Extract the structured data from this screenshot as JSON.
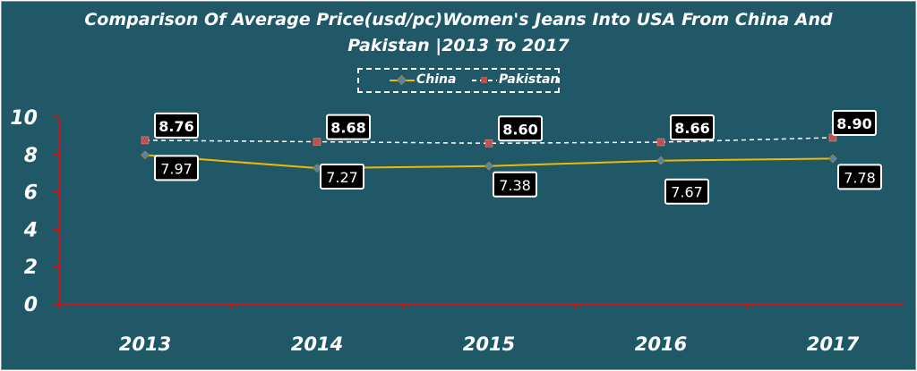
{
  "chart_data": {
    "type": "line",
    "title_line1": "Comparison Of Average Price(usd/pc)Women's Jeans Into USA From China And",
    "title_line2": "Pakistan |2013 To 2017",
    "categories": [
      "2013",
      "2014",
      "2015",
      "2016",
      "2017"
    ],
    "series": [
      {
        "name": "China",
        "values": [
          7.97,
          7.27,
          7.38,
          7.67,
          7.78
        ],
        "labels": [
          "7.97",
          "7.27",
          "7.38",
          "7.67",
          "7.78"
        ],
        "color": "#f2b800",
        "marker_color": "#4f81bd",
        "style": "solid"
      },
      {
        "name": "Pakistan",
        "values": [
          8.76,
          8.68,
          8.6,
          8.66,
          8.9
        ],
        "labels": [
          "8.76",
          "8.68",
          "8.60",
          "8.66",
          "8.90"
        ],
        "color": "#ffffff",
        "marker_color": "#c0504d",
        "style": "dashed"
      }
    ],
    "ylim": [
      0,
      10
    ],
    "yticks": [
      "0",
      "2",
      "4",
      "6",
      "8",
      "10"
    ],
    "xlabel": "",
    "ylabel": "",
    "legend_position": "top-center",
    "grid": false,
    "axis_color": "#ff0000",
    "background": "#215868"
  }
}
